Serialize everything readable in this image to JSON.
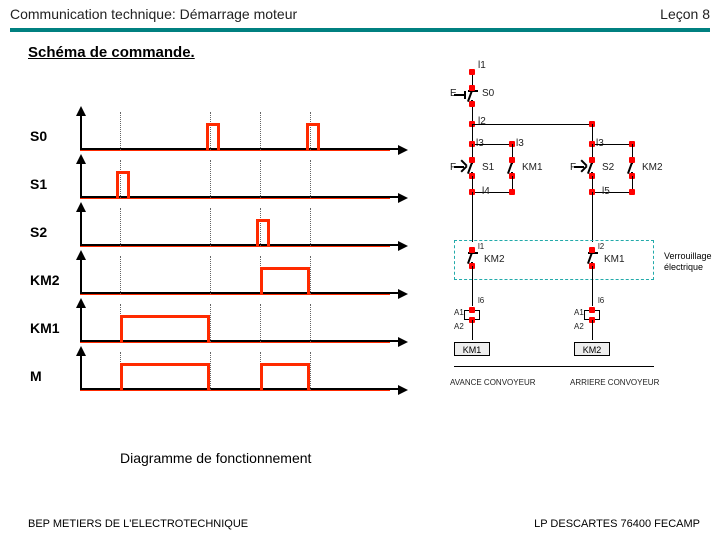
{
  "header": {
    "title_left": "Communication technique: Démarrage moteur",
    "title_right": "Leçon 8"
  },
  "section_title": "Schéma de commande.",
  "timing": {
    "caption": "Diagramme de fonctionnement",
    "signal_color": "#ff2a00",
    "axis_color": "#000000",
    "dash_positions": [
      40,
      130,
      180,
      230
    ],
    "pulse_h": 26,
    "rows": [
      {
        "label": "S0",
        "pulses": [
          [
            126,
            14
          ],
          [
            226,
            14
          ]
        ]
      },
      {
        "label": "S1",
        "pulses": [
          [
            36,
            14
          ]
        ]
      },
      {
        "label": "S2",
        "pulses": [
          [
            176,
            14
          ]
        ]
      },
      {
        "label": "KM2",
        "pulses": [
          [
            180,
            50
          ]
        ]
      },
      {
        "label": "KM1",
        "pulses": [
          [
            40,
            90
          ]
        ]
      },
      {
        "label": "M",
        "pulses": [
          [
            40,
            90
          ],
          [
            180,
            50
          ]
        ]
      }
    ]
  },
  "schematic": {
    "top_rail": "l1",
    "labels": {
      "l1": "l1",
      "s0": "S0",
      "E": "E",
      "n12": "l2",
      "n13a": "l3",
      "n13b": "l3",
      "n13c": "l3",
      "s1": "S1",
      "km1a": "KM1",
      "s2": "S2",
      "km2a": "KM2",
      "F1": "F",
      "F2": "F",
      "n14a": "l4",
      "n14b": "l4",
      "n15a": "l5",
      "n15b": "l5",
      "n11": "l1",
      "n12b": "l2",
      "km2nc": "KM2",
      "km1nc": "KM1",
      "a1a": "A1",
      "a2a": "A2",
      "a1b": "A1",
      "a2b": "A2",
      "km1box": "KM1",
      "km2box": "KM2",
      "n16a": "l6",
      "n16b": "l6",
      "av": "AVANCE CONVOYEUR",
      "ar": "ARRIERE CONVOYEUR"
    },
    "verr": "Verrouillage électrique"
  },
  "footer": {
    "left": "BEP METIERS DE L'ELECTROTECHNIQUE",
    "right": "LP DESCARTES 76400 FECAMP"
  }
}
